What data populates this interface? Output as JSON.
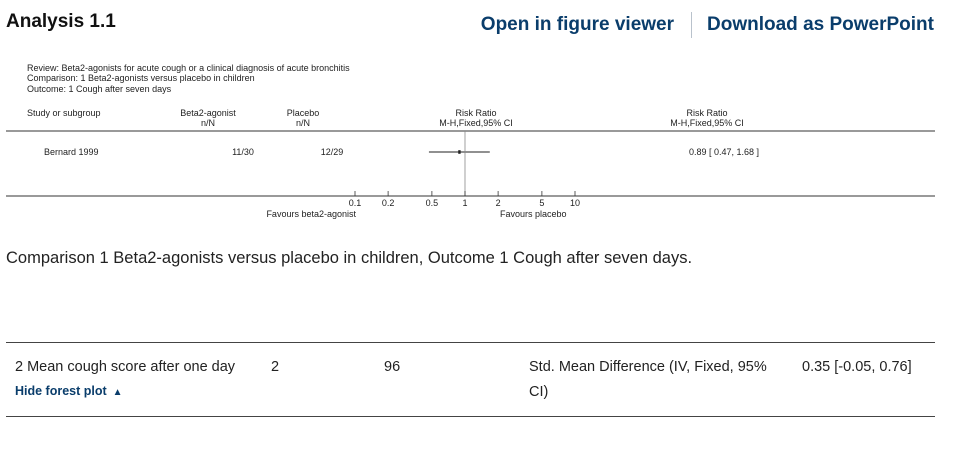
{
  "header": {
    "title": "Analysis 1.1",
    "open_figure_label": "Open in figure viewer",
    "download_ppt_label": "Download as PowerPoint"
  },
  "forest_plot": {
    "review_line": "Review:  Beta2-agonists for acute cough or a clinical diagnosis of acute bronchitis",
    "comparison_line": "Comparison:  1 Beta2-agonists versus placebo in children",
    "outcome_line": "Outcome:  1 Cough after seven days",
    "columns": {
      "study": "Study or subgroup",
      "group1": "Beta2-agonist",
      "group1_sub": "n/N",
      "group2": "Placebo",
      "group2_sub": "n/N",
      "rr_plot": "Risk Ratio",
      "rr_plot_sub": "M-H,Fixed,95% CI",
      "rr_text": "Risk Ratio",
      "rr_text_sub": "M-H,Fixed,95% CI"
    },
    "studies": [
      {
        "name": "Bernard 1999",
        "group1": "11/30",
        "group2": "12/29",
        "rr": 0.89,
        "ci_low": 0.47,
        "ci_high": 1.68,
        "rr_label": "0.89 [ 0.47, 1.68 ]"
      }
    ],
    "axis": {
      "ticks": [
        {
          "value": 0.1,
          "label": "0.1"
        },
        {
          "value": 0.2,
          "label": "0.2"
        },
        {
          "value": 0.5,
          "label": "0.5"
        },
        {
          "value": 1,
          "label": "1"
        },
        {
          "value": 2,
          "label": "2"
        },
        {
          "value": 5,
          "label": "5"
        },
        {
          "value": 10,
          "label": "10"
        }
      ],
      "favours_left": "Favours beta2-agonist",
      "favours_right": "Favours placebo"
    }
  },
  "caption": "Comparison 1 Beta2-agonists versus placebo in children, Outcome 1 Cough after seven days.",
  "outcome_row": {
    "title": "2 Mean cough score after one day",
    "studies_count": "2",
    "participants": "96",
    "method": "Std. Mean Difference (IV, Fixed, 95% CI)",
    "effect": "0.35 [-0.05, 0.76]",
    "hide_plot_label": "Hide forest plot"
  }
}
